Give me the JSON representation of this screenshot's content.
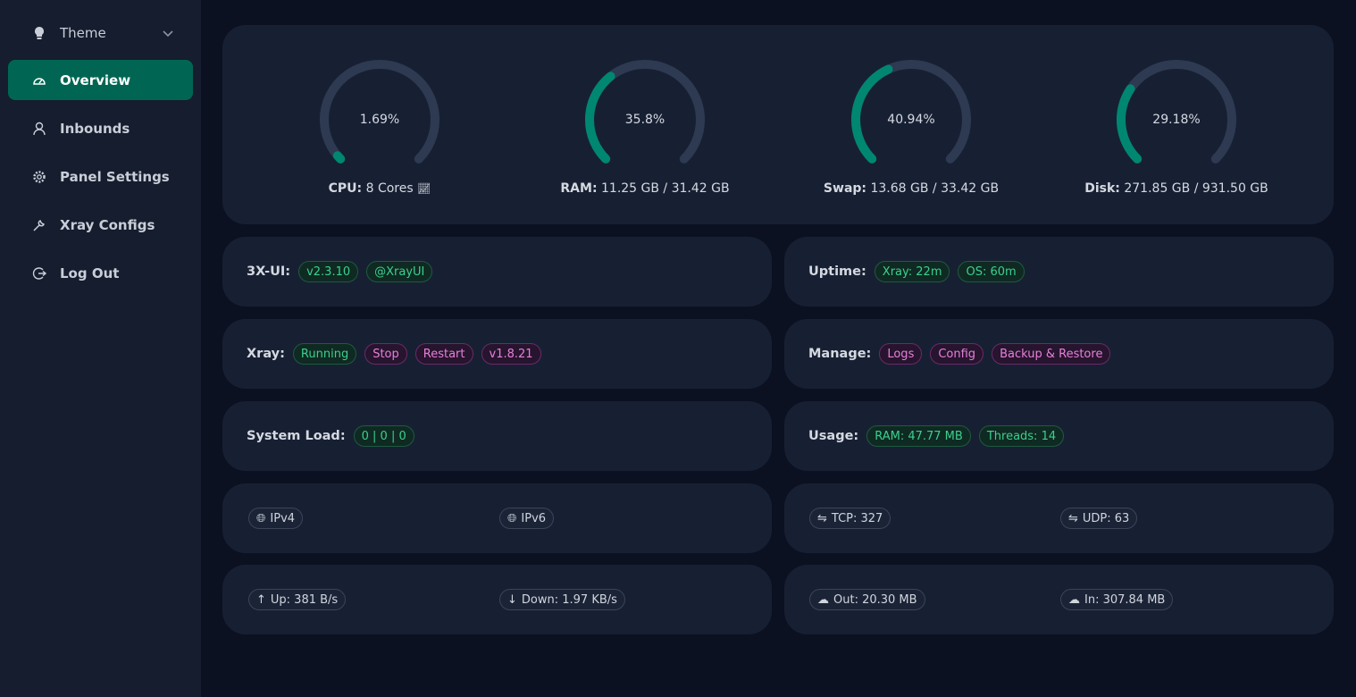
{
  "sidebar": {
    "items": [
      {
        "label": "Theme",
        "icon": "bulb-icon"
      },
      {
        "label": "Overview",
        "icon": "dashboard-icon",
        "active": true
      },
      {
        "label": "Inbounds",
        "icon": "user-icon"
      },
      {
        "label": "Panel Settings",
        "icon": "gear-icon"
      },
      {
        "label": "Xray Configs",
        "icon": "wrench-icon"
      },
      {
        "label": "Log Out",
        "icon": "logout-icon"
      }
    ]
  },
  "gauges": [
    {
      "value": "1.69%",
      "percent": 1.69,
      "label": "CPU:",
      "detail": "8 Cores"
    },
    {
      "value": "35.8%",
      "percent": 35.8,
      "label": "RAM:",
      "detail": "11.25 GB / 31.42 GB"
    },
    {
      "value": "40.94%",
      "percent": 40.94,
      "label": "Swap:",
      "detail": "13.68 GB / 33.42 GB"
    },
    {
      "value": "29.18%",
      "percent": 29.18,
      "label": "Disk:",
      "detail": "271.85 GB / 931.50 GB"
    }
  ],
  "colors": {
    "accent": "#008771",
    "track": "#2e3a52",
    "active": "#006653"
  },
  "info": {
    "app": {
      "label": "3X-UI:",
      "version": "v2.3.10",
      "channel": "@XrayUI"
    },
    "uptime": {
      "label": "Uptime:",
      "xray": "Xray: 22m",
      "os": "OS: 60m"
    },
    "xray": {
      "label": "Xray:",
      "status": "Running",
      "stop": "Stop",
      "restart": "Restart",
      "version": "v1.8.21"
    },
    "manage": {
      "label": "Manage:",
      "logs": "Logs",
      "config": "Config",
      "backup": "Backup & Restore"
    },
    "load": {
      "label": "System Load:",
      "value": "0 | 0 | 0"
    },
    "usage": {
      "label": "Usage:",
      "ram": "RAM: 47.77 MB",
      "threads": "Threads: 14"
    },
    "ipv4": "IPv4",
    "ipv6": "IPv6",
    "tcp": "TCP: 327",
    "udp": "UDP: 63",
    "up": "Up: 381 B/s",
    "down": "Down: 1.97 KB/s",
    "out": "Out: 20.30 MB",
    "in": "In: 307.84 MB"
  }
}
